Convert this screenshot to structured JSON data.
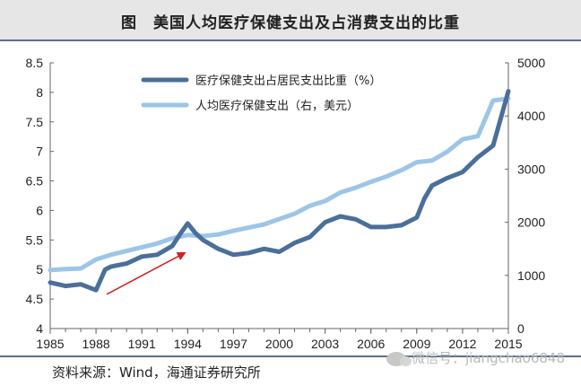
{
  "page_title": "图　美国人均医疗保健支出及占消费支出的比重",
  "source": "资料来源：Wind，海通证券研究所",
  "watermark": "微信号：jiangchao6848",
  "colors": {
    "series_dark": "#4a6f9a",
    "series_light": "#9cc5e8",
    "arrow": "#d81e1e",
    "axis": "#666666"
  },
  "chart_data": {
    "type": "line",
    "x_ticks": [
      "1985",
      "1988",
      "1991",
      "1994",
      "1997",
      "2000",
      "2003",
      "2006",
      "2009",
      "2012",
      "2015"
    ],
    "y_left": {
      "min": 4,
      "max": 8.5,
      "ticks": [
        "4",
        "4.5",
        "5",
        "5.5",
        "6",
        "6.5",
        "7",
        "7.5",
        "8",
        "8.5"
      ]
    },
    "y_right": {
      "min": 0,
      "max": 5000,
      "ticks": [
        "0",
        "1000",
        "2000",
        "3000",
        "4000",
        "5000"
      ]
    },
    "grid": false,
    "legend_position": "top",
    "series": [
      {
        "name": "医疗保健支出占居民支出比重（%）",
        "axis": "left",
        "color": "#4a6f9a",
        "points": [
          [
            1985,
            4.78
          ],
          [
            1986,
            4.72
          ],
          [
            1987,
            4.75
          ],
          [
            1988,
            4.65
          ],
          [
            1988.6,
            5.0
          ],
          [
            1989,
            5.05
          ],
          [
            1990,
            5.1
          ],
          [
            1991,
            5.22
          ],
          [
            1992,
            5.25
          ],
          [
            1993,
            5.4
          ],
          [
            1993.5,
            5.6
          ],
          [
            1994,
            5.78
          ],
          [
            1994.5,
            5.62
          ],
          [
            1995,
            5.5
          ],
          [
            1996,
            5.35
          ],
          [
            1997,
            5.25
          ],
          [
            1998,
            5.28
          ],
          [
            1999,
            5.35
          ],
          [
            2000,
            5.3
          ],
          [
            2001,
            5.45
          ],
          [
            2002,
            5.55
          ],
          [
            2003,
            5.8
          ],
          [
            2004,
            5.9
          ],
          [
            2005,
            5.85
          ],
          [
            2006,
            5.72
          ],
          [
            2007,
            5.72
          ],
          [
            2008,
            5.75
          ],
          [
            2009,
            5.88
          ],
          [
            2009.5,
            6.2
          ],
          [
            2010,
            6.42
          ],
          [
            2011,
            6.55
          ],
          [
            2012,
            6.65
          ],
          [
            2013,
            6.9
          ],
          [
            2014,
            7.1
          ],
          [
            2015,
            8.02
          ]
        ]
      },
      {
        "name": "人均医疗保健支出（右，美元）",
        "axis": "right",
        "color": "#9cc5e8",
        "points": [
          [
            1985,
            1100
          ],
          [
            1986,
            1120
          ],
          [
            1987,
            1130
          ],
          [
            1988,
            1300
          ],
          [
            1989,
            1390
          ],
          [
            1990,
            1460
          ],
          [
            1991,
            1530
          ],
          [
            1992,
            1600
          ],
          [
            1993,
            1700
          ],
          [
            1994,
            1760
          ],
          [
            1995,
            1740
          ],
          [
            1996,
            1770
          ],
          [
            1997,
            1840
          ],
          [
            1998,
            1900
          ],
          [
            1999,
            1960
          ],
          [
            2000,
            2060
          ],
          [
            2001,
            2160
          ],
          [
            2002,
            2310
          ],
          [
            2003,
            2400
          ],
          [
            2004,
            2560
          ],
          [
            2005,
            2650
          ],
          [
            2006,
            2760
          ],
          [
            2007,
            2860
          ],
          [
            2008,
            2980
          ],
          [
            2009,
            3130
          ],
          [
            2010,
            3160
          ],
          [
            2011,
            3330
          ],
          [
            2012,
            3560
          ],
          [
            2013,
            3620
          ],
          [
            2014,
            4290
          ],
          [
            2015,
            4330
          ]
        ]
      }
    ],
    "annotations": [
      {
        "type": "arrow",
        "from": [
          1988.7,
          4.58
        ],
        "to": [
          1993.8,
          5.28
        ]
      }
    ]
  }
}
